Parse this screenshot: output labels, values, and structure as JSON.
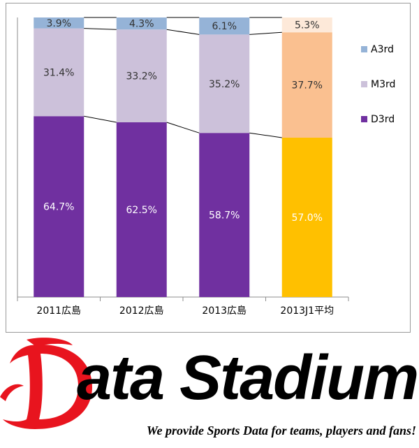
{
  "chart_data": {
    "type": "bar",
    "stacked": true,
    "categories": [
      "2011広島",
      "2012広島",
      "2013広島",
      "2013J1平均"
    ],
    "series": [
      {
        "name": "D3rd",
        "values": [
          64.7,
          62.5,
          58.7,
          57.0
        ],
        "labels": [
          "64.7%",
          "62.5%",
          "58.7%",
          "57.0%"
        ],
        "colors": [
          "#7030a0",
          "#7030a0",
          "#7030a0",
          "#ffc000"
        ],
        "label_color": "#ffffff"
      },
      {
        "name": "M3rd",
        "values": [
          31.4,
          33.2,
          35.2,
          37.7
        ],
        "labels": [
          "31.4%",
          "33.2%",
          "35.2%",
          "37.7%"
        ],
        "colors": [
          "#ccc1da",
          "#ccc1da",
          "#ccc1da",
          "#fac090"
        ],
        "label_color": "#333333"
      },
      {
        "name": "A3rd",
        "values": [
          3.9,
          4.3,
          6.1,
          5.3
        ],
        "labels": [
          "3.9%",
          "4.3%",
          "6.1%",
          "5.3%"
        ],
        "colors": [
          "#95b3d7",
          "#95b3d7",
          "#95b3d7",
          "#fde9d9"
        ],
        "label_color": "#333333"
      }
    ],
    "legend": {
      "position": "right",
      "entries": [
        {
          "name": "A3rd",
          "color": "#95b3d7"
        },
        {
          "name": "M3rd",
          "color": "#ccc1da"
        },
        {
          "name": "D3rd",
          "color": "#7030a0"
        }
      ]
    },
    "ylim": [
      0,
      100
    ],
    "grid": false,
    "connector_lines": true
  },
  "logo": {
    "word": "ata Stadium",
    "initial": "D",
    "tagline": "We provide Sports Data for teams, players and fans!",
    "colors": {
      "initial": "#e8141e",
      "word": "#000000"
    }
  }
}
